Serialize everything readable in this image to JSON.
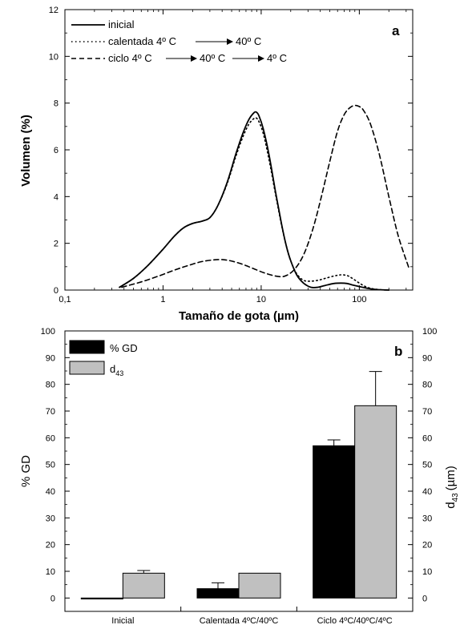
{
  "chart_data": [
    {
      "type": "line",
      "panel_label": "a",
      "xlabel": "Tamaño de gota (µm)",
      "ylabel": "Volumen (%)",
      "xscale": "log",
      "xlim": [
        0.1,
        350
      ],
      "ylim": [
        0,
        12
      ],
      "xticks": [
        0.1,
        1,
        10,
        100
      ],
      "xtick_labels": [
        "0,1",
        "1",
        "10",
        "100"
      ],
      "yticks": [
        0,
        2,
        4,
        6,
        8,
        10,
        12
      ],
      "legend_position": "top-left",
      "legend": {
        "entries": [
          {
            "label": "inicial"
          },
          {
            "label": "calentada 4º C",
            "label_end": "40º C"
          },
          {
            "label": "ciclo 4º C",
            "label_mid": "40º C",
            "label_end": "4º C"
          }
        ]
      },
      "series": [
        {
          "name": "inicial",
          "style": "solid",
          "x": [
            0.36,
            0.5,
            0.7,
            1.0,
            1.3,
            1.6,
            2.0,
            2.5,
            3.0,
            3.6,
            4.5,
            5.5,
            6.5,
            7.5,
            8.5,
            9.0,
            9.5,
            10.5,
            12,
            14,
            16,
            18,
            20,
            23,
            27,
            32,
            38,
            45,
            55,
            65,
            75,
            85,
            100,
            120,
            150,
            200
          ],
          "y": [
            0.12,
            0.5,
            1.05,
            1.75,
            2.3,
            2.65,
            2.85,
            2.95,
            3.1,
            3.6,
            4.6,
            5.8,
            6.7,
            7.3,
            7.6,
            7.6,
            7.45,
            6.9,
            5.8,
            4.2,
            2.9,
            1.9,
            1.25,
            0.65,
            0.3,
            0.12,
            0.12,
            0.2,
            0.28,
            0.3,
            0.28,
            0.22,
            0.15,
            0.08,
            0.02,
            0.0
          ]
        },
        {
          "name": "calentada 4º C → 40º C",
          "style": "dotted",
          "x": [
            0.36,
            0.5,
            0.7,
            1.0,
            1.3,
            1.6,
            2.0,
            2.5,
            3.0,
            3.6,
            4.5,
            5.5,
            6.5,
            7.5,
            8.5,
            9.0,
            9.5,
            10.5,
            12,
            14,
            16,
            18,
            20,
            23,
            27,
            32,
            38,
            45,
            55,
            65,
            75,
            85,
            100,
            120,
            150,
            200
          ],
          "y": [
            0.12,
            0.5,
            1.05,
            1.75,
            2.3,
            2.65,
            2.85,
            2.95,
            3.1,
            3.6,
            4.55,
            5.7,
            6.55,
            7.1,
            7.35,
            7.35,
            7.2,
            6.7,
            5.6,
            4.1,
            2.85,
            1.9,
            1.25,
            0.7,
            0.42,
            0.38,
            0.42,
            0.5,
            0.6,
            0.65,
            0.62,
            0.5,
            0.3,
            0.12,
            0.03,
            0.0
          ]
        },
        {
          "name": "ciclo 4º C → 40º C → 4º C",
          "style": "dashed",
          "x": [
            0.38,
            0.6,
            0.9,
            1.3,
            1.8,
            2.5,
            3.5,
            4.5,
            6,
            8,
            11,
            15,
            18,
            22,
            27,
            33,
            40,
            50,
            60,
            70,
            80,
            90,
            100,
            110,
            130,
            160,
            200,
            250,
            320
          ],
          "y": [
            0.12,
            0.35,
            0.6,
            0.85,
            1.05,
            1.22,
            1.3,
            1.28,
            1.15,
            0.95,
            0.72,
            0.58,
            0.62,
            0.9,
            1.5,
            2.5,
            3.8,
            5.5,
            6.8,
            7.5,
            7.8,
            7.9,
            7.85,
            7.7,
            7.1,
            5.8,
            4.0,
            2.3,
            0.95
          ]
        }
      ]
    },
    {
      "type": "bar",
      "panel_label": "b",
      "categories": [
        "Inicial",
        "Calentada 4ºC/40ºC",
        "Ciclo 4ºC/40ºC/4ºC"
      ],
      "ylabel": "% GD",
      "ylabel_right": "d43 (µm)",
      "ylabel_right_parts": {
        "base": "d",
        "sub": "43",
        "unit": "(µm)"
      },
      "ylim": [
        -5,
        100
      ],
      "yticks": [
        0,
        10,
        20,
        30,
        40,
        50,
        60,
        70,
        80,
        90,
        100
      ],
      "legend_position": "top-left",
      "series": [
        {
          "name": "% GD",
          "color": "#000000",
          "values": [
            0,
            3.5,
            57
          ],
          "errors": [
            0,
            2.2,
            2.2
          ]
        },
        {
          "name": "d43",
          "name_parts": {
            "base": "d",
            "sub": "43"
          },
          "color": "#c0c0c0",
          "values": [
            9.3,
            9.3,
            72
          ],
          "errors": [
            1.0,
            0,
            12.8
          ]
        }
      ]
    }
  ]
}
